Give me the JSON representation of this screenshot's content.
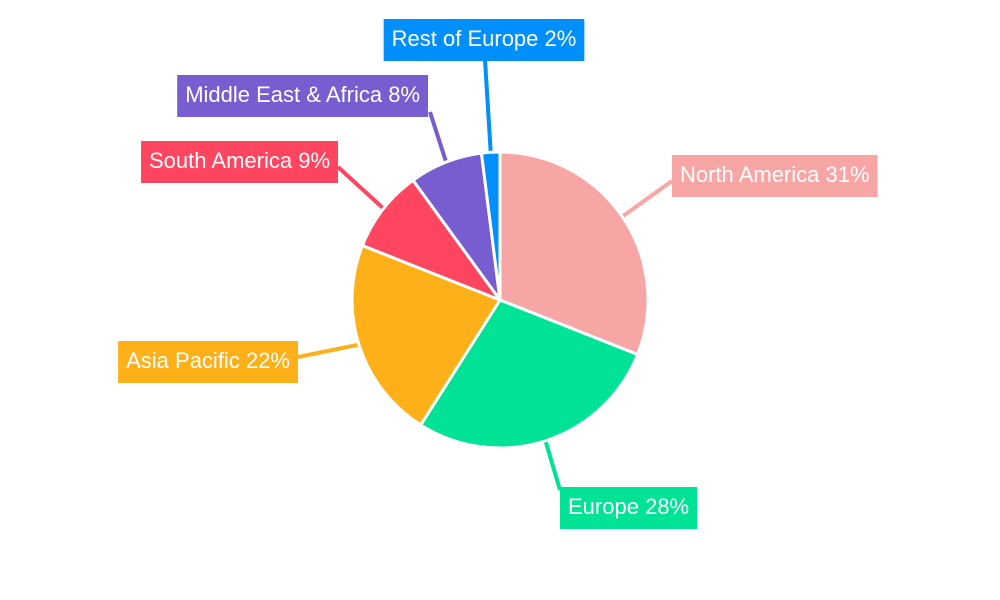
{
  "chart_data": {
    "type": "pie",
    "categories": [
      "North America",
      "Europe",
      "Asia Pacific",
      "South America",
      "Middle East & Africa",
      "Rest of Europe"
    ],
    "values": [
      31,
      28,
      22,
      9,
      8,
      2
    ],
    "value_labels": [
      "31%",
      "28%",
      "22%",
      "9%",
      "8%",
      "2%"
    ],
    "colors": [
      "#f8a5a5",
      "#00e396",
      "#feb019",
      "#ff4560",
      "#775dd0",
      "#008ffb"
    ]
  }
}
